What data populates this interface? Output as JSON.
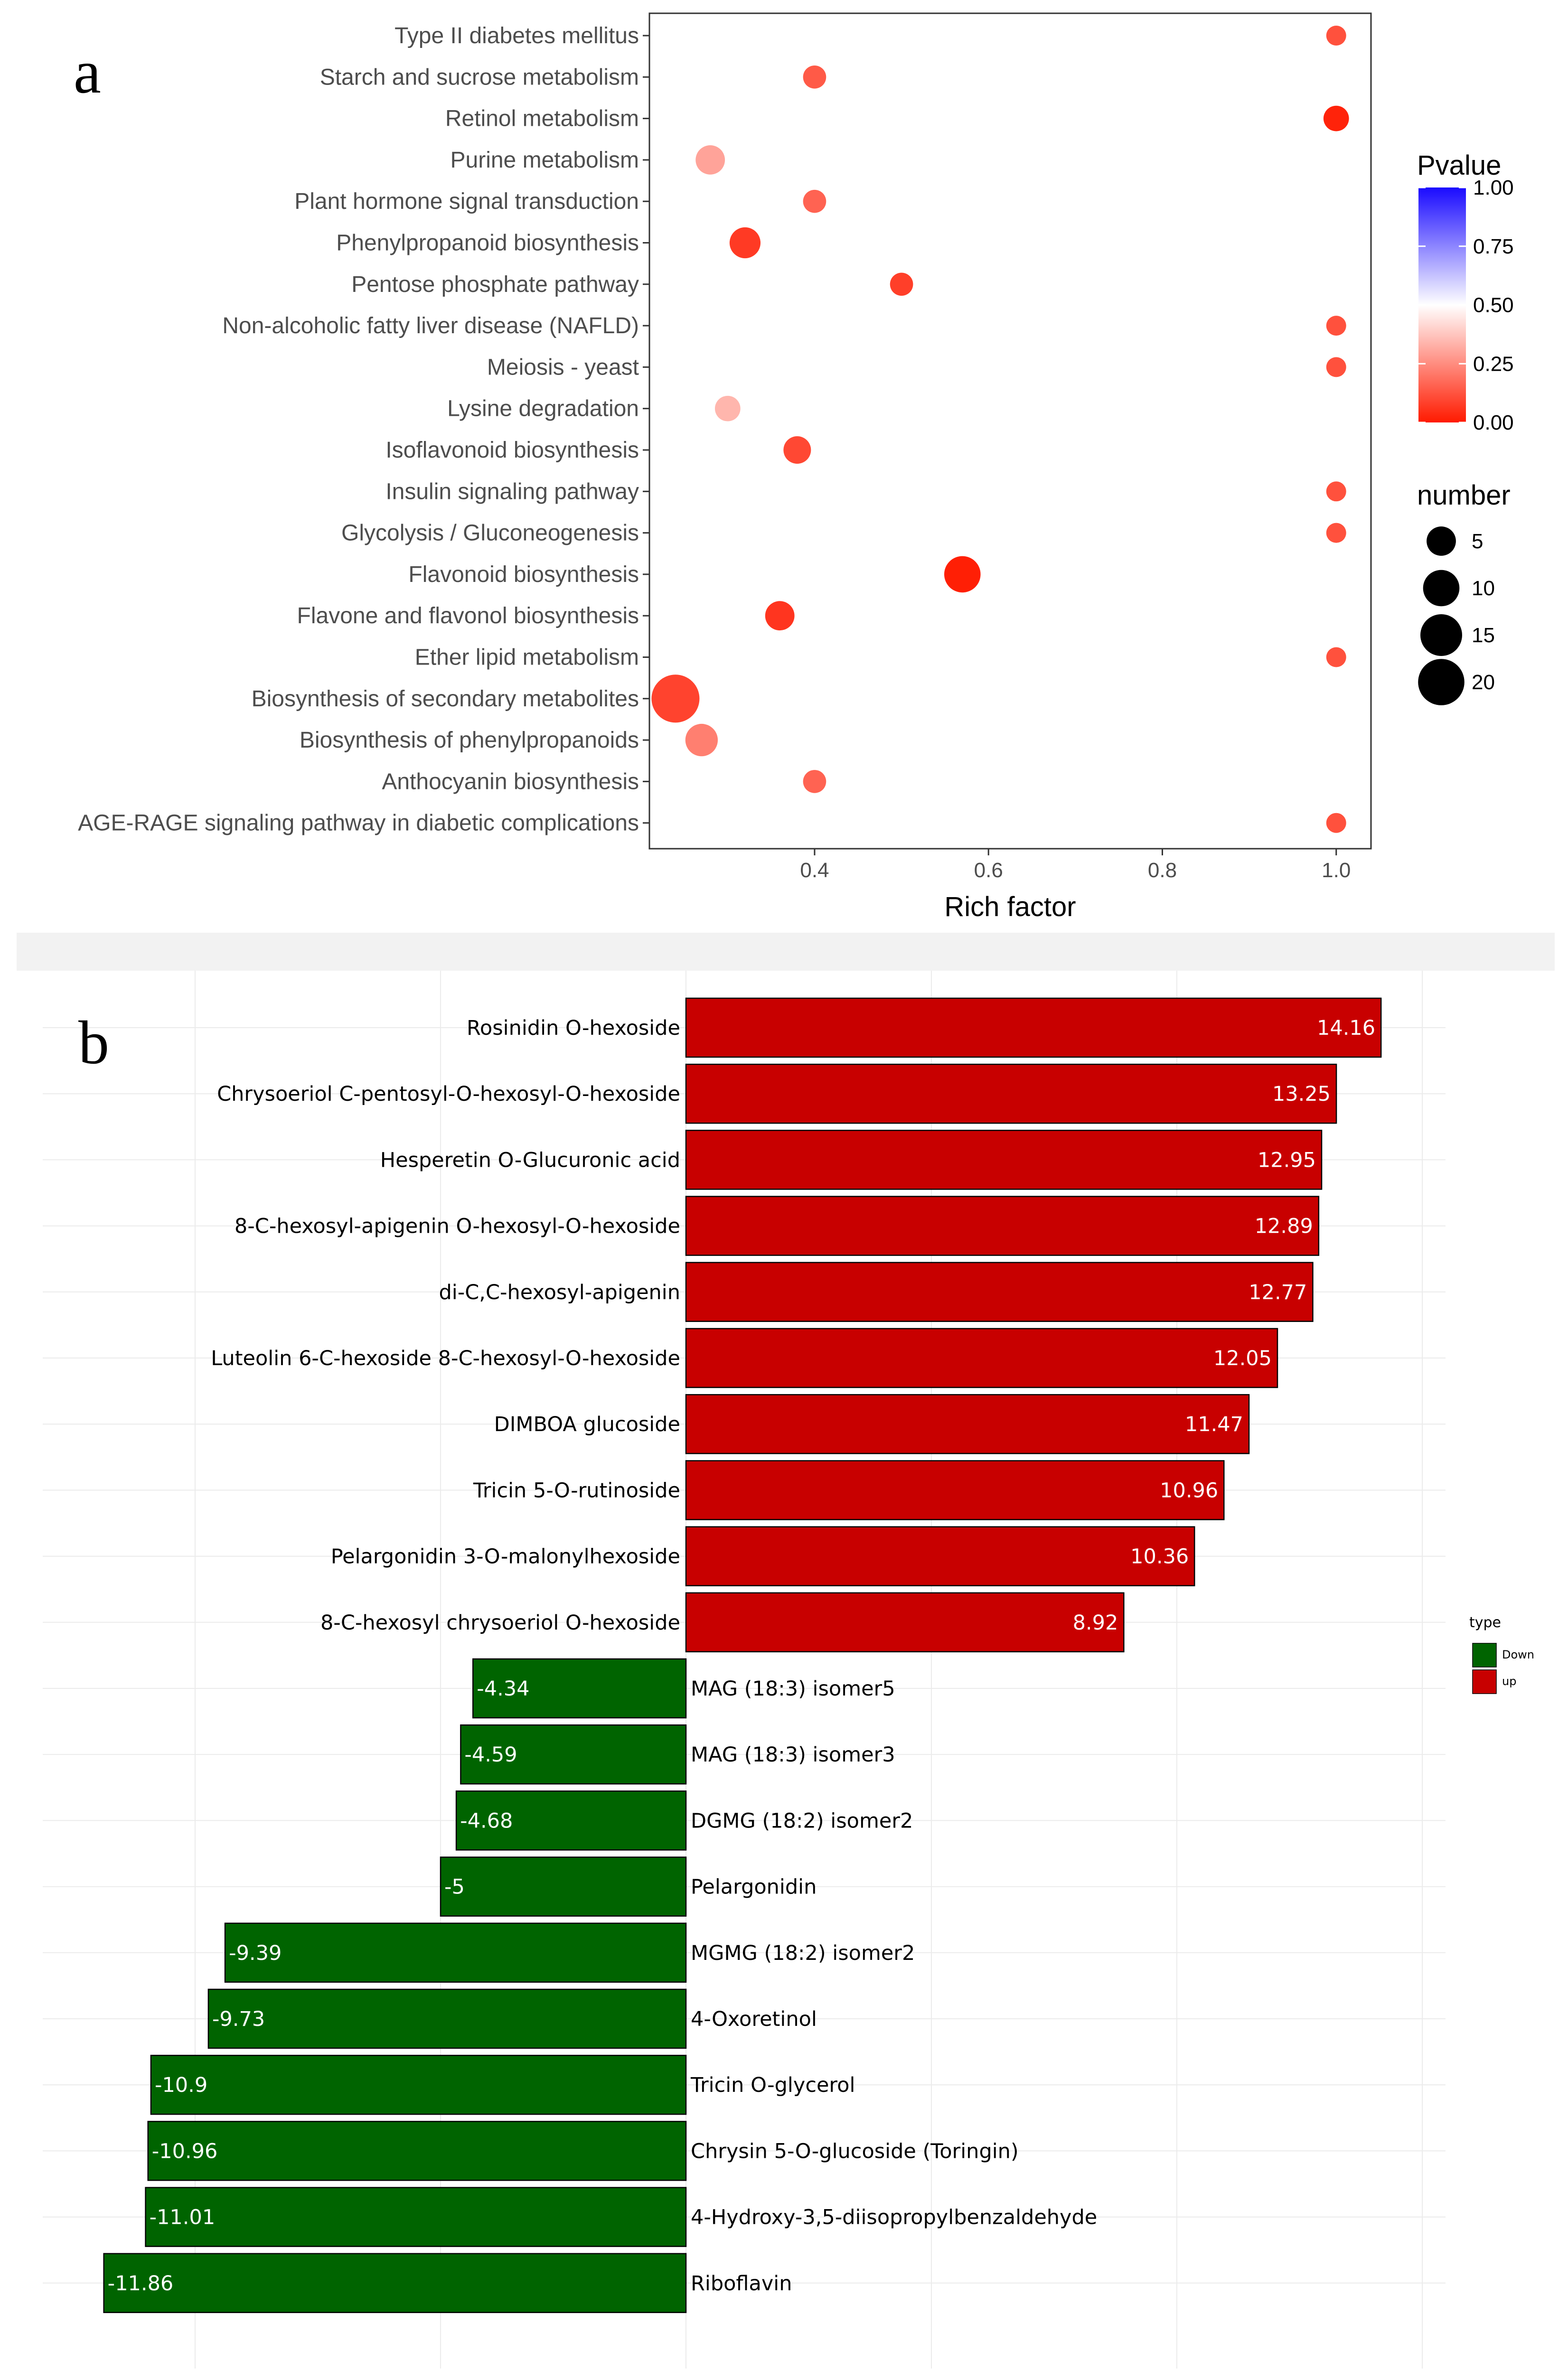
{
  "chart_data": [
    {
      "panel": "a",
      "type": "scatter",
      "xlabel": "Rich factor",
      "ylabel": "",
      "xlim": [
        0.21,
        1.04
      ],
      "xticks": [
        "0.4",
        "0.6",
        "0.8",
        "1.0"
      ],
      "xtick_values": [
        0.4,
        0.6,
        0.8,
        1.0
      ],
      "grid": false,
      "categories": [
        "Type II diabetes mellitus",
        "Starch and sucrose metabolism",
        "Retinol metabolism",
        "Purine metabolism",
        "Plant hormone signal transduction",
        "Phenylpropanoid biosynthesis",
        "Pentose phosphate pathway",
        "Non-alcoholic fatty liver disease (NAFLD)",
        "Meiosis - yeast",
        "Lysine degradation",
        "Isoflavonoid biosynthesis",
        "Insulin signaling pathway",
        "Glycolysis / Gluconeogenesis",
        "Flavonoid biosynthesis",
        "Flavone and flavonol biosynthesis",
        "Ether lipid metabolism",
        "Biosynthesis of secondary metabolites",
        "Biosynthesis of phenylpropanoids",
        "Anthocyanin biosynthesis",
        "AGE-RAGE signaling pathway in diabetic complications"
      ],
      "rich_factor": [
        1.0,
        0.4,
        1.0,
        0.28,
        0.4,
        0.32,
        0.5,
        1.0,
        1.0,
        0.3,
        0.38,
        1.0,
        1.0,
        0.57,
        0.36,
        1.0,
        0.24,
        0.27,
        0.4,
        1.0
      ],
      "number": [
        1,
        2,
        3,
        5,
        2,
        6,
        2,
        1,
        1,
        3,
        4,
        1,
        1,
        10,
        5,
        1,
        22,
        7,
        2,
        1
      ],
      "pvalue": [
        0.12,
        0.14,
        0.02,
        0.3,
        0.16,
        0.07,
        0.08,
        0.12,
        0.12,
        0.34,
        0.1,
        0.12,
        0.12,
        0.01,
        0.06,
        0.12,
        0.09,
        0.22,
        0.16,
        0.12
      ],
      "legend": {
        "color_title": "Pvalue",
        "color_ticks": [
          "1.00",
          "0.75",
          "0.50",
          "0.25",
          "0.00"
        ],
        "color_tick_values": [
          1.0,
          0.75,
          0.5,
          0.25,
          0.0
        ],
        "color_low": "#ff1a00",
        "color_mid": "#ffffff",
        "color_high": "#1a0bff",
        "size_title": "number",
        "size_labels": [
          "5",
          "10",
          "15",
          "20"
        ],
        "size_values": [
          5,
          10,
          15,
          20
        ],
        "placement": "right"
      }
    },
    {
      "panel": "b",
      "type": "bar",
      "orientation": "horizontal",
      "xlim": [
        -12.4,
        15.6
      ],
      "grid": true,
      "categories": [
        "Rosinidin O-hexoside",
        "Chrysoeriol C-pentosyl-O-hexosyl-O-hexoside",
        "Hesperetin O-Glucuronic acid",
        "8-C-hexosyl-apigenin O-hexosyl-O-hexoside",
        "di-C,C-hexosyl-apigenin",
        "Luteolin 6-C-hexoside 8-C-hexosyl-O-hexoside",
        "DIMBOA glucoside",
        "Tricin 5-O-rutinoside",
        "Pelargonidin 3-O-malonylhexoside",
        "8-C-hexosyl chrysoeriol O-hexoside",
        "MAG (18:3) isomer5",
        "MAG (18:3) isomer3",
        "DGMG (18:2) isomer2",
        "Pelargonidin",
        "MGMG (18:2) isomer2",
        "4-Oxoretinol",
        "Tricin O-glycerol",
        "Chrysin 5-O-glucoside (Toringin)",
        "4-Hydroxy-3,5-diisopropylbenzaldehyde",
        "Riboflavin"
      ],
      "values": [
        14.16,
        13.25,
        12.95,
        12.89,
        12.77,
        12.05,
        11.47,
        10.96,
        10.36,
        8.92,
        -4.34,
        -4.59,
        -4.68,
        -5,
        -9.39,
        -9.73,
        -10.9,
        -10.96,
        -11.01,
        -11.86
      ],
      "value_labels": [
        "14.16",
        "13.25",
        "12.95",
        "12.89",
        "12.77",
        "12.05",
        "11.47",
        "10.96",
        "10.36",
        "8.92",
        "-4.34",
        "-4.59",
        "-4.68",
        "-5",
        "-9.39",
        "-9.73",
        "-10.9",
        "-10.96",
        "-11.01",
        "-11.86"
      ],
      "type_of": [
        "up",
        "up",
        "up",
        "up",
        "up",
        "up",
        "up",
        "up",
        "up",
        "up",
        "Down",
        "Down",
        "Down",
        "Down",
        "Down",
        "Down",
        "Down",
        "Down",
        "Down",
        "Down"
      ],
      "legend": {
        "title": "type",
        "entries": [
          {
            "label": "Down",
            "color": "#006400"
          },
          {
            "label": "up",
            "color": "#c80000"
          }
        ],
        "placement": "right"
      }
    }
  ],
  "panel_labels": {
    "a": "a",
    "b": "b"
  }
}
